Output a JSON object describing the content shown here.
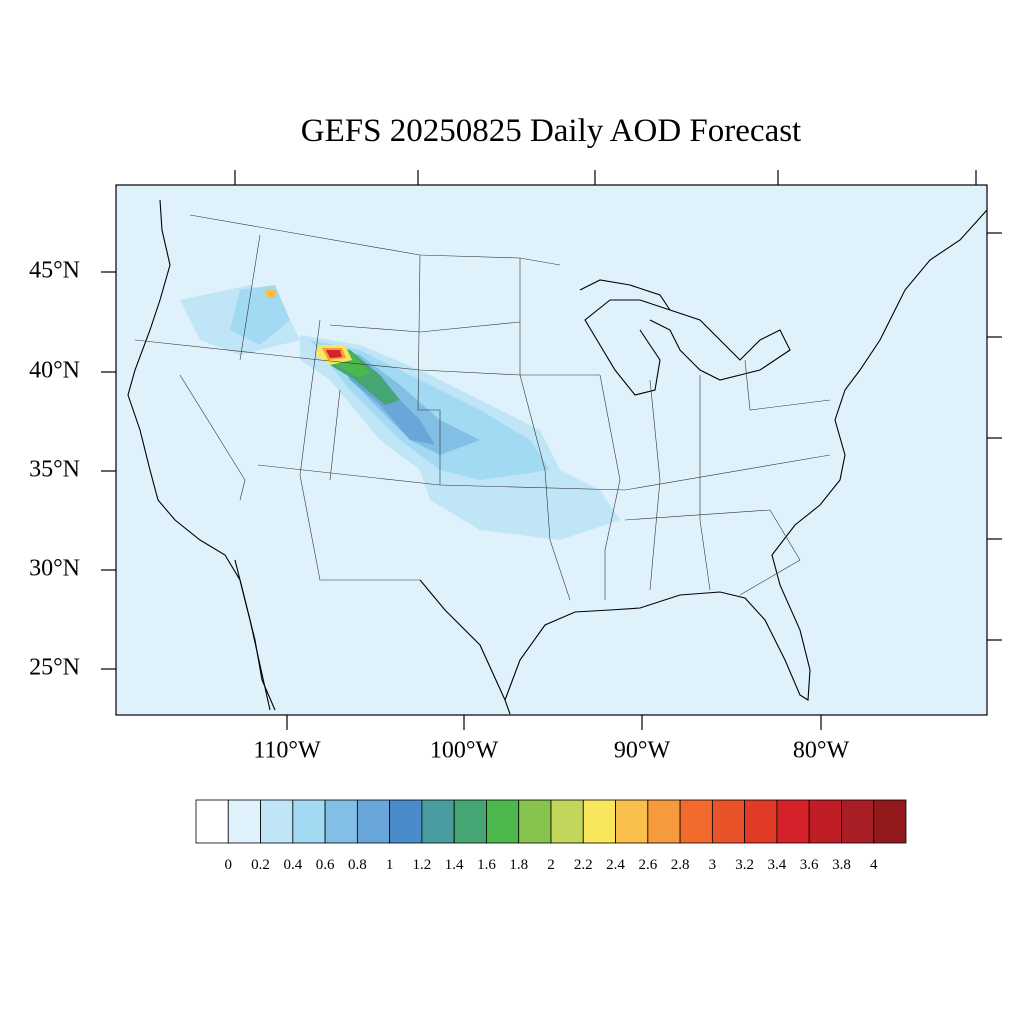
{
  "title": "GEFS 20250825 Daily AOD Forecast",
  "lat_labels": [
    "45°N",
    "40°N",
    "35°N",
    "30°N",
    "25°N"
  ],
  "lon_labels": [
    "110°W",
    "100°W",
    "90°W",
    "80°W"
  ],
  "colorbar": {
    "labels": [
      0,
      0.2,
      0.4,
      0.6,
      0.8,
      1,
      1.2,
      1.4,
      1.6,
      1.8,
      2,
      2.2,
      2.4,
      2.6,
      2.8,
      3,
      3.2,
      3.4,
      3.6,
      3.8,
      4
    ],
    "colors": [
      "#ffffff",
      "#dff2fb",
      "#bfe5f7",
      "#a2d9f3",
      "#83bfe5",
      "#69a7da",
      "#4a8ccb",
      "#499c9f",
      "#45a673",
      "#4cb84b",
      "#86c44e",
      "#c3d65b",
      "#f8e65c",
      "#f8bf4a",
      "#f69a3e",
      "#f26b2d",
      "#e9532a",
      "#df3b27",
      "#d52129",
      "#bf1e26",
      "#a91d24",
      "#921a1d"
    ]
  }
}
